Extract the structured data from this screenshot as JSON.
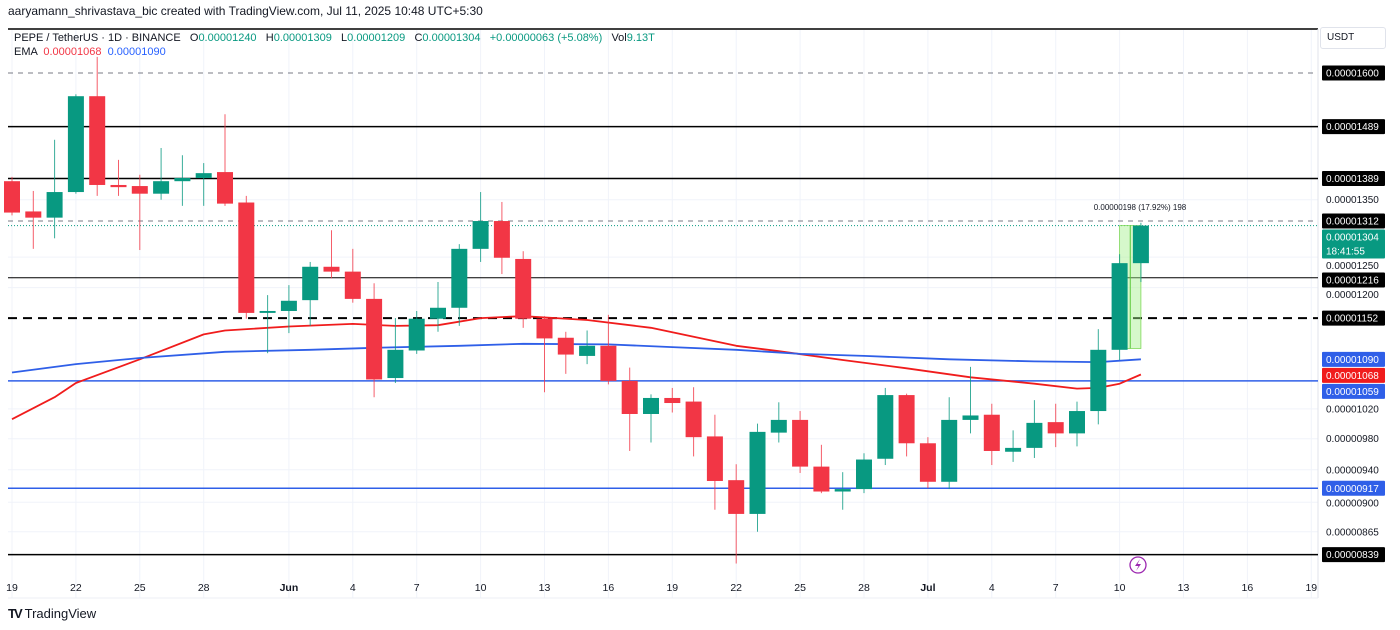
{
  "credit": "aaryamann_shrivastava_bic created with TradingView.com, Jul 11, 2025 10:48 UTC+5:30",
  "legend": {
    "symbol": "PEPE / TetherUS · 1D · BINANCE",
    "o_label": "O",
    "o_value": "0.00001240",
    "h_label": "H",
    "h_value": "0.00001309",
    "l_label": "L",
    "l_value": "0.00001209",
    "c_label": "C",
    "c_value": "0.00001304",
    "change": "+0.00000063 (+5.08%)",
    "vol_label": "Vol",
    "vol_value": "9.13T",
    "ema_label": "EMA",
    "ema_fast": "0.00001068",
    "ema_slow": "0.00001090"
  },
  "currency_button": "USDT",
  "brand": "TradingView",
  "colors": {
    "up": "#089981",
    "down": "#f23645",
    "ema_fast": "#f01c1c",
    "ema_slow": "#2f5fe8",
    "level_blue": "#2f5fe8",
    "measure": "#a5f08c",
    "alert": "#9c27b0"
  },
  "chart_data": {
    "type": "candlestick",
    "title": "",
    "y_scale": "log",
    "ylim": [
      8.1e-06,
      1.65e-05
    ],
    "grid": true,
    "candles": [
      {
        "date": "2025-05-19",
        "o": 1.384e-05,
        "h": 1.392e-05,
        "l": 1.322e-05,
        "c": 1.327e-05
      },
      {
        "date": "2025-05-20",
        "o": 1.329e-05,
        "h": 1.366e-05,
        "l": 1.264e-05,
        "c": 1.318e-05
      },
      {
        "date": "2025-05-21",
        "o": 1.318e-05,
        "h": 1.463e-05,
        "l": 1.282e-05,
        "c": 1.364e-05
      },
      {
        "date": "2025-05-22",
        "o": 1.364e-05,
        "h": 1.555e-05,
        "l": 1.361e-05,
        "c": 1.551e-05
      },
      {
        "date": "2025-05-23",
        "o": 1.551e-05,
        "h": 1.635e-05,
        "l": 1.357e-05,
        "c": 1.377e-05
      },
      {
        "date": "2025-05-24",
        "o": 1.377e-05,
        "h": 1.424e-05,
        "l": 1.357e-05,
        "c": 1.373e-05
      },
      {
        "date": "2025-05-25",
        "o": 1.375e-05,
        "h": 1.396e-05,
        "l": 1.262e-05,
        "c": 1.361e-05
      },
      {
        "date": "2025-05-26",
        "o": 1.361e-05,
        "h": 1.447e-05,
        "l": 1.35e-05,
        "c": 1.384e-05
      },
      {
        "date": "2025-05-27",
        "o": 1.384e-05,
        "h": 1.433e-05,
        "l": 1.339e-05,
        "c": 1.39e-05
      },
      {
        "date": "2025-05-28",
        "o": 1.39e-05,
        "h": 1.418e-05,
        "l": 1.339e-05,
        "c": 1.399e-05
      },
      {
        "date": "2025-05-29",
        "o": 1.401e-05,
        "h": 1.514e-05,
        "l": 1.339e-05,
        "c": 1.343e-05
      },
      {
        "date": "2025-05-30",
        "o": 1.345e-05,
        "h": 1.357e-05,
        "l": 1.151e-05,
        "c": 1.16e-05
      },
      {
        "date": "2025-05-31",
        "o": 1.16e-05,
        "h": 1.188e-05,
        "l": 1.099e-05,
        "c": 1.163e-05
      },
      {
        "date": "2025-06-01",
        "o": 1.163e-05,
        "h": 1.204e-05,
        "l": 1.129e-05,
        "c": 1.179e-05
      },
      {
        "date": "2025-06-02",
        "o": 1.18e-05,
        "h": 1.242e-05,
        "l": 1.14e-05,
        "c": 1.234e-05
      },
      {
        "date": "2025-06-03",
        "o": 1.234e-05,
        "h": 1.296e-05,
        "l": 1.215e-05,
        "c": 1.226e-05
      },
      {
        "date": "2025-06-04",
        "o": 1.226e-05,
        "h": 1.264e-05,
        "l": 1.176e-05,
        "c": 1.182e-05
      },
      {
        "date": "2025-06-05",
        "o": 1.182e-05,
        "h": 1.207e-05,
        "l": 1.036e-05,
        "c": 1.061e-05
      },
      {
        "date": "2025-06-06",
        "o": 1.063e-05,
        "h": 1.152e-05,
        "l": 1.056e-05,
        "c": 1.104e-05
      },
      {
        "date": "2025-06-07",
        "o": 1.103e-05,
        "h": 1.163e-05,
        "l": 1.098e-05,
        "c": 1.151e-05
      },
      {
        "date": "2025-06-08",
        "o": 1.151e-05,
        "h": 1.209e-05,
        "l": 1.131e-05,
        "c": 1.168e-05
      },
      {
        "date": "2025-06-09",
        "o": 1.168e-05,
        "h": 1.272e-05,
        "l": 1.14e-05,
        "c": 1.264e-05
      },
      {
        "date": "2025-06-10",
        "o": 1.264e-05,
        "h": 1.364e-05,
        "l": 1.242e-05,
        "c": 1.312e-05
      },
      {
        "date": "2025-06-11",
        "o": 1.312e-05,
        "h": 1.346e-05,
        "l": 1.222e-05,
        "c": 1.249e-05
      },
      {
        "date": "2025-06-12",
        "o": 1.247e-05,
        "h": 1.26e-05,
        "l": 1.137e-05,
        "c": 1.151e-05
      },
      {
        "date": "2025-06-13",
        "o": 1.151e-05,
        "h": 1.155e-05,
        "l": 1.043e-05,
        "c": 1.121e-05
      },
      {
        "date": "2025-06-14",
        "o": 1.122e-05,
        "h": 1.131e-05,
        "l": 1.069e-05,
        "c": 1.097e-05
      },
      {
        "date": "2025-06-15",
        "o": 1.095e-05,
        "h": 1.133e-05,
        "l": 1.083e-05,
        "c": 1.11e-05
      },
      {
        "date": "2025-06-16",
        "o": 1.11e-05,
        "h": 1.157e-05,
        "l": 1.054e-05,
        "c": 1.059e-05
      },
      {
        "date": "2025-06-17",
        "o": 1.059e-05,
        "h": 1.078e-05,
        "l": 9.64e-06,
        "c": 1.013e-05
      },
      {
        "date": "2025-06-18",
        "o": 1.013e-05,
        "h": 1.04e-05,
        "l": 9.75e-06,
        "c": 1.035e-05
      },
      {
        "date": "2025-06-19",
        "o": 1.035e-05,
        "h": 1.049e-05,
        "l": 1.015e-05,
        "c": 1.028e-05
      },
      {
        "date": "2025-06-20",
        "o": 1.03e-05,
        "h": 1.05e-05,
        "l": 9.57e-06,
        "c": 9.82e-06
      },
      {
        "date": "2025-06-21",
        "o": 9.83e-06,
        "h": 1.012e-05,
        "l": 8.91e-06,
        "c": 9.26e-06
      },
      {
        "date": "2025-06-22",
        "o": 9.27e-06,
        "h": 9.47e-06,
        "l": 8.29e-06,
        "c": 8.86e-06
      },
      {
        "date": "2025-06-23",
        "o": 8.86e-06,
        "h": 1e-05,
        "l": 8.65e-06,
        "c": 9.89e-06
      },
      {
        "date": "2025-06-24",
        "o": 9.88e-06,
        "h": 1.029e-05,
        "l": 9.75e-06,
        "c": 1.005e-05
      },
      {
        "date": "2025-06-25",
        "o": 1.005e-05,
        "h": 1.017e-05,
        "l": 9.36e-06,
        "c": 9.44e-06
      },
      {
        "date": "2025-06-26",
        "o": 9.44e-06,
        "h": 9.72e-06,
        "l": 9.11e-06,
        "c": 9.13e-06
      },
      {
        "date": "2025-06-27",
        "o": 9.13e-06,
        "h": 9.37e-06,
        "l": 8.91e-06,
        "c": 9.16e-06
      },
      {
        "date": "2025-06-28",
        "o": 9.16e-06,
        "h": 9.61e-06,
        "l": 9.11e-06,
        "c": 9.53e-06
      },
      {
        "date": "2025-06-29",
        "o": 9.54e-06,
        "h": 1.049e-05,
        "l": 9.46e-06,
        "c": 1.039e-05
      },
      {
        "date": "2025-06-30",
        "o": 1.039e-05,
        "h": 1.041e-05,
        "l": 9.57e-06,
        "c": 9.74e-06
      },
      {
        "date": "2025-07-01",
        "o": 9.74e-06,
        "h": 9.82e-06,
        "l": 9.17e-06,
        "c": 9.25e-06
      },
      {
        "date": "2025-07-02",
        "o": 9.25e-06,
        "h": 1.036e-05,
        "l": 9.16e-06,
        "c": 1.005e-05
      },
      {
        "date": "2025-07-03",
        "o": 1.005e-05,
        "h": 1.079e-05,
        "l": 9.87e-06,
        "c": 1.011e-05
      },
      {
        "date": "2025-07-04",
        "o": 1.012e-05,
        "h": 1.027e-05,
        "l": 9.46e-06,
        "c": 9.64e-06
      },
      {
        "date": "2025-07-05",
        "o": 9.63e-06,
        "h": 9.91e-06,
        "l": 9.5e-06,
        "c": 9.68e-06
      },
      {
        "date": "2025-07-06",
        "o": 9.68e-06,
        "h": 1.032e-05,
        "l": 9.55e-06,
        "c": 1.001e-05
      },
      {
        "date": "2025-07-07",
        "o": 1.002e-05,
        "h": 1.027e-05,
        "l": 9.69e-06,
        "c": 9.87e-06
      },
      {
        "date": "2025-07-08",
        "o": 9.87e-06,
        "h": 1.03e-05,
        "l": 9.7e-06,
        "c": 1.017e-05
      },
      {
        "date": "2025-07-09",
        "o": 1.017e-05,
        "h": 1.135e-05,
        "l": 9.99e-06,
        "c": 1.104e-05
      },
      {
        "date": "2025-07-10",
        "o": 1.104e-05,
        "h": 1.255e-05,
        "l": 1.089e-05,
        "c": 1.24e-05
      },
      {
        "date": "2025-07-11",
        "o": 1.24e-05,
        "h": 1.309e-05,
        "l": 1.209e-05,
        "c": 1.304e-05
      }
    ],
    "ema_fast": [
      [
        "2025-05-19",
        1.006e-05
      ],
      [
        "2025-05-21",
        1.036e-05
      ],
      [
        "2025-05-22",
        1.056e-05
      ],
      [
        "2025-05-25",
        1.09e-05
      ],
      [
        "2025-05-28",
        1.127e-05
      ],
      [
        "2025-05-29",
        1.133e-05
      ],
      [
        "2025-06-01",
        1.139e-05
      ],
      [
        "2025-06-04",
        1.143e-05
      ],
      [
        "2025-06-06",
        1.14e-05
      ],
      [
        "2025-06-08",
        1.141e-05
      ],
      [
        "2025-06-10",
        1.152e-05
      ],
      [
        "2025-06-12",
        1.155e-05
      ],
      [
        "2025-06-15",
        1.149e-05
      ],
      [
        "2025-06-18",
        1.137e-05
      ],
      [
        "2025-06-22",
        1.11e-05
      ],
      [
        "2025-06-24",
        1.102e-05
      ],
      [
        "2025-06-27",
        1.089e-05
      ],
      [
        "2025-06-30",
        1.077e-05
      ],
      [
        "2025-07-03",
        1.064e-05
      ],
      [
        "2025-07-06",
        1.055e-05
      ],
      [
        "2025-07-08",
        1.048e-05
      ],
      [
        "2025-07-09",
        1.049e-05
      ],
      [
        "2025-07-10",
        1.055e-05
      ],
      [
        "2025-07-11",
        1.068e-05
      ]
    ],
    "ema_slow": [
      [
        "2025-05-19",
        1.071e-05
      ],
      [
        "2025-05-22",
        1.083e-05
      ],
      [
        "2025-05-25",
        1.092e-05
      ],
      [
        "2025-05-29",
        1.101e-05
      ],
      [
        "2025-06-02",
        1.104e-05
      ],
      [
        "2025-06-05",
        1.107e-05
      ],
      [
        "2025-06-09",
        1.11e-05
      ],
      [
        "2025-06-12",
        1.113e-05
      ],
      [
        "2025-06-16",
        1.112e-05
      ],
      [
        "2025-06-19",
        1.108e-05
      ],
      [
        "2025-06-22",
        1.104e-05
      ],
      [
        "2025-06-25",
        1.098e-05
      ],
      [
        "2025-06-28",
        1.095e-05
      ],
      [
        "2025-07-02",
        1.09e-05
      ],
      [
        "2025-07-06",
        1.087e-05
      ],
      [
        "2025-07-09",
        1.086e-05
      ],
      [
        "2025-07-11",
        1.09e-05
      ]
    ],
    "levels": [
      {
        "price": "0.00001600",
        "color": "#787b86",
        "style": "dashed",
        "label_bg": "#000000"
      },
      {
        "price": "0.00001489",
        "color": "#000000",
        "style": "solid",
        "label_bg": "#000000"
      },
      {
        "price": "0.00001389",
        "color": "#000000",
        "style": "solid",
        "label_bg": "#000000"
      },
      {
        "price": "0.00001312",
        "color": "#787b86",
        "style": "dashed",
        "label_bg": "#000000"
      },
      {
        "price": "0.00001216",
        "color": "#000000",
        "style": "thin",
        "label_bg": "#000000"
      },
      {
        "price": "0.00001152",
        "color": "#000000",
        "style": "dashed-bold",
        "label_bg": "#000000"
      },
      {
        "price": "0.00001059",
        "color": "#2f5fe8",
        "style": "solid",
        "label_bg": "#2f5fe8"
      },
      {
        "price": "0.00000917",
        "color": "#2f5fe8",
        "style": "solid",
        "label_bg": "#2f5fe8"
      },
      {
        "price": "0.00000839",
        "color": "#000000",
        "style": "solid",
        "label_bg": "#000000"
      }
    ],
    "ema_labels": [
      {
        "price": "0.00001090",
        "bg": "#2f5fe8"
      },
      {
        "price": "0.00001068",
        "bg": "#f01c1c"
      }
    ],
    "current_price": {
      "price": "0.00001304",
      "countdown": "18:41:55",
      "bg": "#089981"
    },
    "y_ticks": [
      "0.00001350",
      "0.00001250",
      "0.00001200",
      "0.00001020",
      "0.00000980",
      "0.00000940",
      "0.00000900",
      "0.00000865"
    ],
    "x_ticks": [
      {
        "label": "19",
        "date": "2025-05-19"
      },
      {
        "label": "22",
        "date": "2025-05-22"
      },
      {
        "label": "25",
        "date": "2025-05-25"
      },
      {
        "label": "28",
        "date": "2025-05-28"
      },
      {
        "label": "Jun",
        "date": "2025-06-01"
      },
      {
        "label": "4",
        "date": "2025-06-04"
      },
      {
        "label": "7",
        "date": "2025-06-07"
      },
      {
        "label": "10",
        "date": "2025-06-10"
      },
      {
        "label": "13",
        "date": "2025-06-13"
      },
      {
        "label": "16",
        "date": "2025-06-16"
      },
      {
        "label": "19",
        "date": "2025-06-19"
      },
      {
        "label": "22",
        "date": "2025-06-22"
      },
      {
        "label": "25",
        "date": "2025-06-25"
      },
      {
        "label": "28",
        "date": "2025-06-28"
      },
      {
        "label": "Jul",
        "date": "2025-07-01"
      },
      {
        "label": "4",
        "date": "2025-07-04"
      },
      {
        "label": "7",
        "date": "2025-07-07"
      },
      {
        "label": "10",
        "date": "2025-07-10"
      },
      {
        "label": "13",
        "date": "2025-07-13"
      },
      {
        "label": "16",
        "date": "2025-07-16"
      },
      {
        "label": "19",
        "date": "2025-07-19"
      }
    ],
    "measure": {
      "from_date": "2025-07-10",
      "to_date": "2025-07-11",
      "from_price": 1.106e-05,
      "to_price": 1.304e-05,
      "label": "0.00000198 (17.92%) 198"
    }
  }
}
